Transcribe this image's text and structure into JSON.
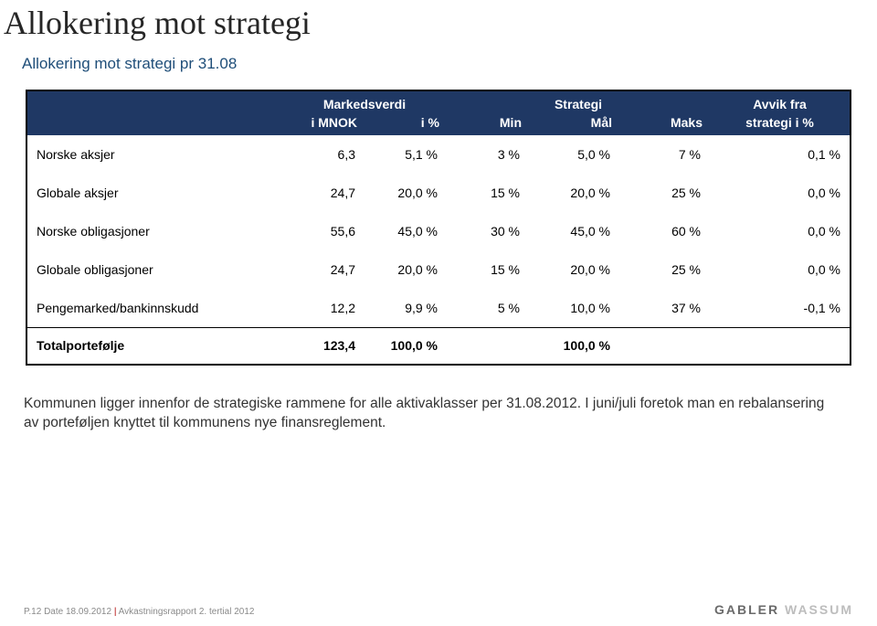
{
  "title": "Allokering mot strategi",
  "subtitle": "Allokering mot strategi pr 31.08",
  "header": {
    "group_markedsverdi": "Markedsverdi",
    "group_strategi": "Strategi",
    "avvik_top": "Avvik fra",
    "avvik_bottom": "strategi i %",
    "blank": "",
    "i_mnok": "i MNOK",
    "i_pct": "i %",
    "min": "Min",
    "mal": "Mål",
    "maks": "Maks"
  },
  "rows": [
    {
      "name": "Norske aksjer",
      "mnok": "6,3",
      "pct": "5,1 %",
      "min": "3 %",
      "mal": "5,0 %",
      "maks": "7 %",
      "dev": "0,1 %"
    },
    {
      "name": "Globale aksjer",
      "mnok": "24,7",
      "pct": "20,0 %",
      "min": "15 %",
      "mal": "20,0 %",
      "maks": "25 %",
      "dev": "0,0 %"
    },
    {
      "name": "Norske obligasjoner",
      "mnok": "55,6",
      "pct": "45,0 %",
      "min": "30 %",
      "mal": "45,0 %",
      "maks": "60 %",
      "dev": "0,0 %"
    },
    {
      "name": "Globale obligasjoner",
      "mnok": "24,7",
      "pct": "20,0 %",
      "min": "15 %",
      "mal": "20,0 %",
      "maks": "25 %",
      "dev": "0,0 %"
    },
    {
      "name": "Pengemarked/bankinnskudd",
      "mnok": "12,2",
      "pct": "9,9 %",
      "min": "5 %",
      "mal": "10,0 %",
      "maks": "37 %",
      "dev": "-0,1 %"
    }
  ],
  "total": {
    "name": "Totalportefølje",
    "mnok": "123,4",
    "pct": "100,0 %",
    "min": "",
    "mal": "100,0 %",
    "maks": "",
    "dev": ""
  },
  "note": "Kommunen ligger innenfor de strategiske rammene for alle aktivaklasser per 31.08.2012. I juni/juli foretok man en rebalansering av porteføljen knyttet til kommunens nye finansreglement.",
  "footer": {
    "page": "P.12",
    "date_label": "Date",
    "date_value": "18.09.2012",
    "doc": "Avkastningsrapport 2. tertial 2012",
    "brand1": "GABLER",
    "brand2": "WASSUM"
  },
  "colors": {
    "header_bg": "#1f3864",
    "header_fg": "#ffffff",
    "title_fg": "#262626",
    "subtitle_fg": "#1f4e79",
    "footer_grey": "#8a8a8a",
    "footer_red": "#b00000",
    "brand_dark": "#6a6a6a",
    "brand_light": "#bdbdbd"
  }
}
